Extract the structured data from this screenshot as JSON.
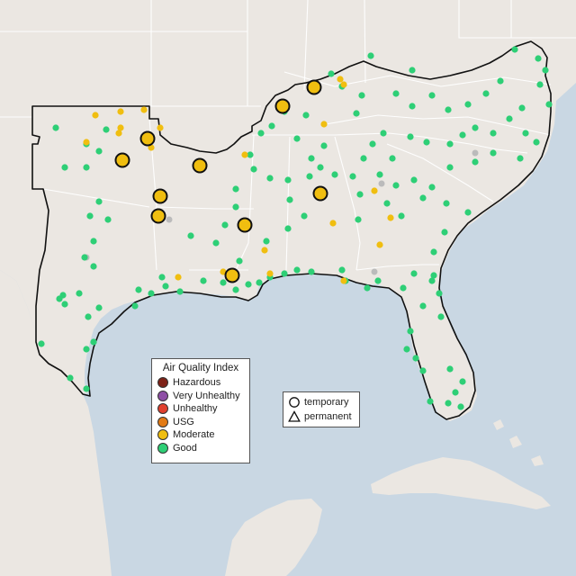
{
  "colors": {
    "ocean": "#c9d7e3",
    "land": "#ebe7e2",
    "hazardous": "#7e2218",
    "very_unhealthy": "#8e4fa5",
    "unhealthy": "#e0402e",
    "usg": "#e27b16",
    "moderate": "#f0be10",
    "good": "#2ecf76",
    "no_data": "#bbbbbb"
  },
  "legend": {
    "title": "Air Quality Index",
    "categories": [
      {
        "key": "hazardous",
        "label": "Hazardous",
        "color": "#7e2218"
      },
      {
        "key": "very_unhealthy",
        "label": "Very Unhealthy",
        "color": "#8e4fa5"
      },
      {
        "key": "unhealthy",
        "label": "Unhealthy",
        "color": "#e0402e"
      },
      {
        "key": "usg",
        "label": "USG",
        "color": "#e27b16"
      },
      {
        "key": "moderate",
        "label": "Moderate",
        "color": "#f0be10"
      },
      {
        "key": "good",
        "label": "Good",
        "color": "#2ecf76"
      }
    ]
  },
  "station_types": {
    "temporary": {
      "label": "temporary",
      "icon": "circle-icon"
    },
    "permanent": {
      "label": "permanent",
      "icon": "triangle-icon"
    }
  }
}
